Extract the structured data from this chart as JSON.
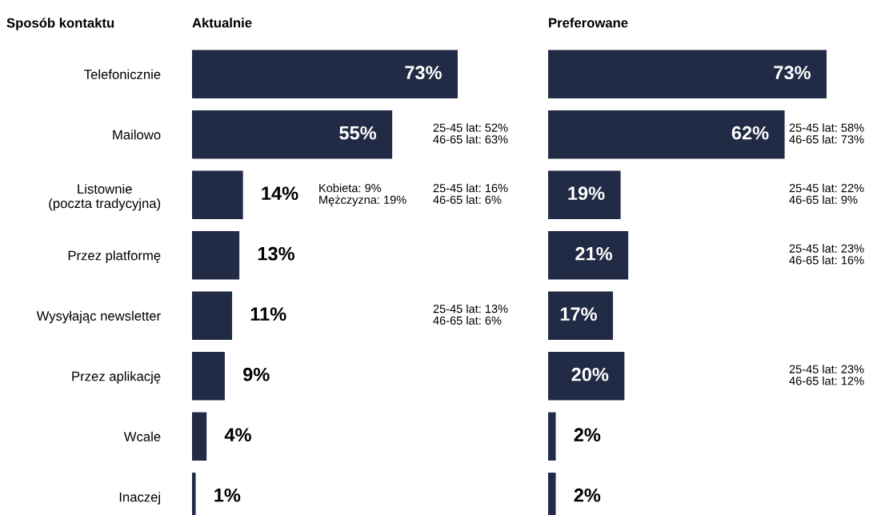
{
  "chart_data": [
    {
      "type": "bar",
      "orientation": "horizontal",
      "title": "Aktualnie",
      "ylabel": "Sposób kontaktu",
      "grid": false,
      "legend": false,
      "categories": [
        "Telefonicznie",
        "Mailowo",
        "Listownie\n(poczta tradycyjna)",
        "Przez platformę",
        "Wysyłając newsletter",
        "Przez aplikację",
        "Wcale",
        "Inaczej"
      ],
      "series": [
        {
          "color": "#222b45",
          "values": [
            73,
            55,
            14,
            13,
            11,
            9,
            4,
            1
          ],
          "value_labels": [
            "73%",
            "55%",
            "14%",
            "13%",
            "11%",
            "9%",
            "4%",
            "1%"
          ]
        }
      ],
      "annotations": [
        "25-45 lat: 52%\n46-65 lat: 63%",
        "Kobieta: 9%\nMężczyzna: 19%",
        "25-45 lat: 16%\n46-65 lat: 6%",
        "25-45 lat: 13%\n46-65 lat: 6%"
      ]
    },
    {
      "type": "bar",
      "orientation": "horizontal",
      "title": "Preferowane",
      "grid": false,
      "legend": false,
      "categories": [
        null,
        null,
        null,
        null,
        null,
        null,
        null,
        null
      ],
      "series": [
        {
          "color": "#222b45",
          "values": [
            73,
            62,
            19,
            21,
            17,
            20,
            2,
            2
          ],
          "value_labels": [
            "73%",
            "62%",
            "19%",
            "21%",
            "17%",
            "20%",
            "2%",
            "2%"
          ]
        }
      ],
      "annotations": [
        "25-45 lat: 58%\n46-65 lat: 73%",
        "25-45 lat: 22%\n46-65 lat: 9%",
        "25-45 lat: 23%\n46-65 lat: 16%",
        "25-45 lat: 23%\n46-65 lat: 12%"
      ]
    }
  ]
}
